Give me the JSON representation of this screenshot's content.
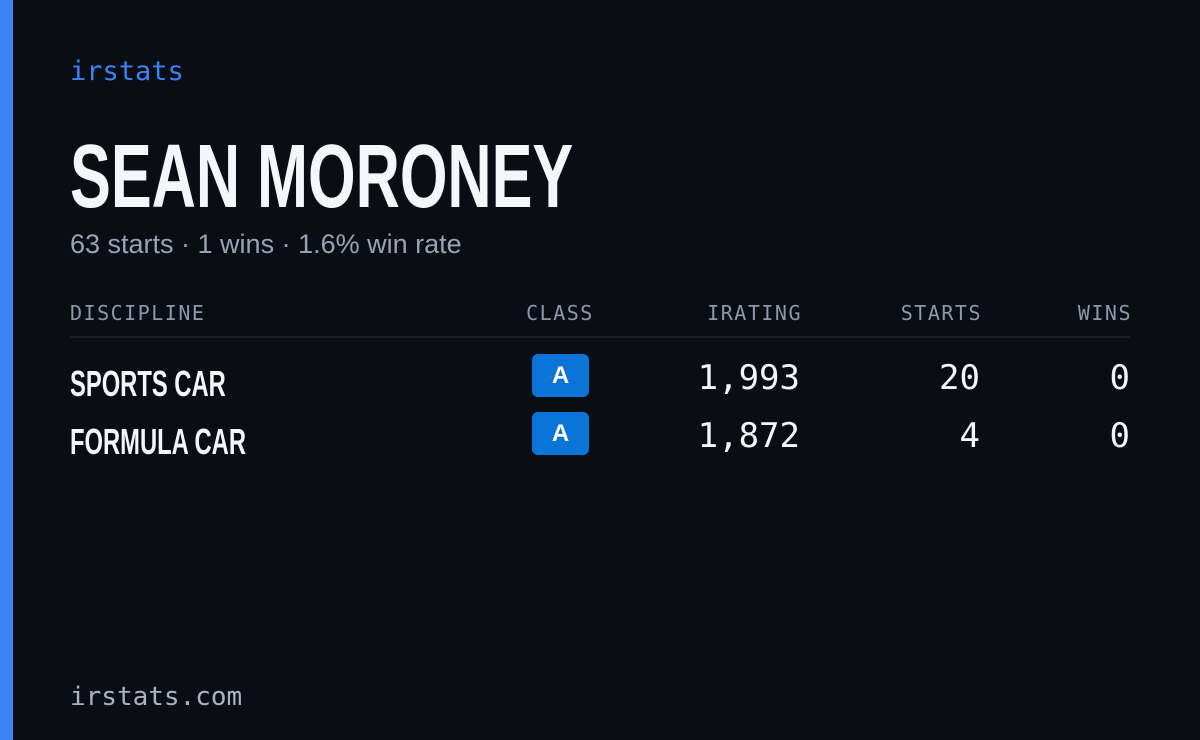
{
  "brand": "irstats",
  "name": "SEAN MORONEY",
  "summary": "63 starts · 1 wins · 1.6% win rate",
  "table": {
    "columns": [
      "DISCIPLINE",
      "CLASS",
      "IRATING",
      "STARTS",
      "WINS"
    ],
    "rows": [
      [
        "SPORTS CAR",
        "A",
        "1,993",
        "20",
        "0"
      ],
      [
        "FORMULA CAR",
        "A",
        "1,872",
        "4",
        "0"
      ]
    ]
  },
  "footer": "irstats.com"
}
